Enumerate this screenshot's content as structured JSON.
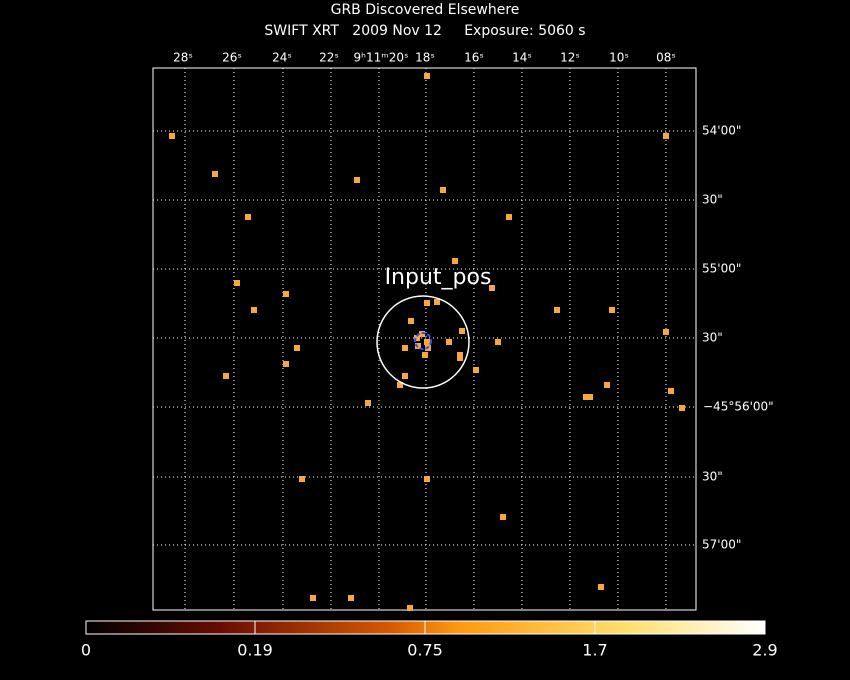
{
  "header": {
    "title": "GRB Discovered Elsewhere",
    "subtitle": "SWIFT XRT   2009 Nov 12     Exposure: 5060 s"
  },
  "ra_labels": [
    "28ˢ",
    "26ˢ",
    "24ˢ",
    "22ˢ",
    "9ʰ11ᵐ20ˢ",
    "18ˢ",
    "16ˢ",
    "14ˢ",
    "12ˢ",
    "10ˢ",
    "08ˢ"
  ],
  "dec_labels": [
    "54'00\"",
    "30\"",
    "55'00\"",
    "30\"",
    "−45°56'00\"",
    "30\"",
    "57'00\""
  ],
  "annotation": "Input_pos",
  "colorbar": {
    "labels": [
      "0",
      "0.19",
      "0.75",
      "1.7",
      "2.9"
    ]
  }
}
